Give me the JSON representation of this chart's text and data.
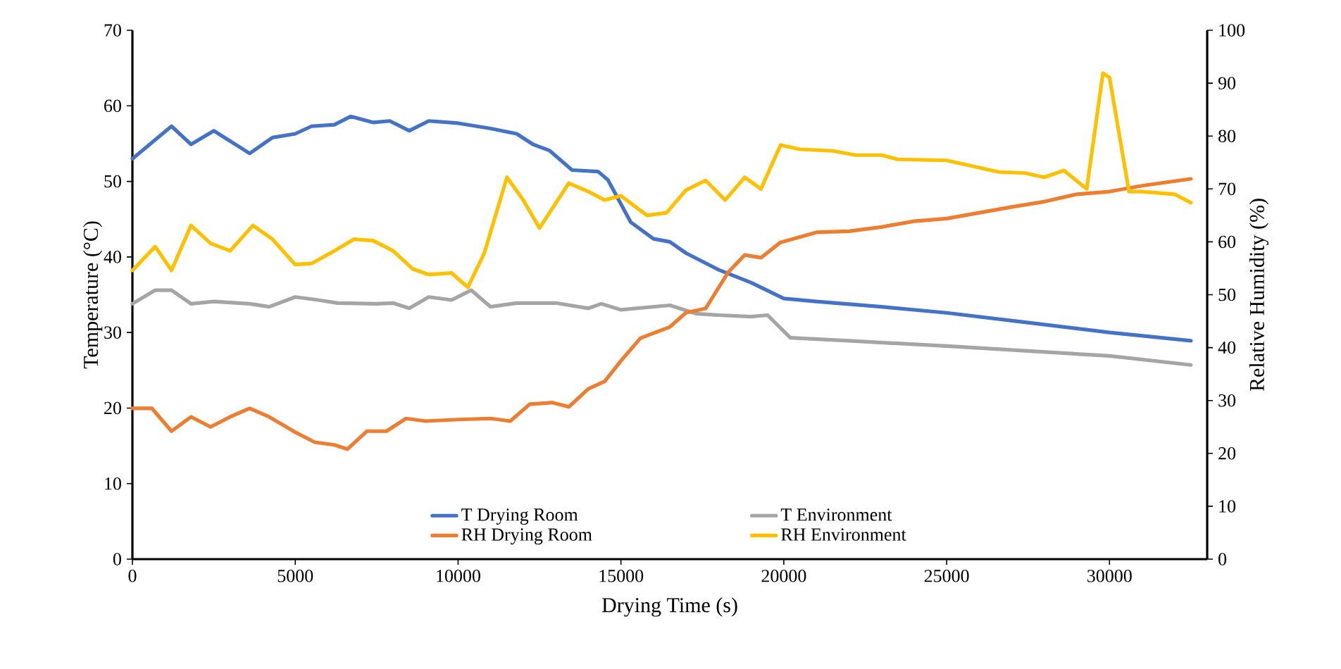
{
  "chart_data": {
    "type": "line",
    "xlabel": "Drying Time (s)",
    "ylabel": "Temperature (°C)",
    "y2label": "Relative Humidity (%)",
    "xlim": [
      0,
      33000
    ],
    "xticks": [
      0,
      5000,
      10000,
      15000,
      20000,
      25000,
      30000
    ],
    "ylim": [
      0,
      70
    ],
    "yticks": [
      0,
      10,
      20,
      30,
      40,
      50,
      60,
      70
    ],
    "y2lim": [
      0,
      100
    ],
    "y2ticks": [
      0,
      10,
      20,
      30,
      40,
      50,
      60,
      70,
      80,
      90,
      100
    ],
    "legend": "bottom",
    "grid": false,
    "marker": "none",
    "line_style": "solid",
    "series": [
      {
        "name": "T Drying Room",
        "color": "#4472c4",
        "x": [
          0,
          1200,
          1800,
          2500,
          3600,
          4300,
          5000,
          5500,
          6200,
          6700,
          7400,
          7900,
          8500,
          9100,
          10000,
          11000,
          11800,
          12300,
          12800,
          13500,
          14300,
          14600,
          15300,
          16000,
          16500,
          17000,
          18000,
          19000,
          20000,
          21000,
          23000,
          25000,
          27500,
          30000,
          32500
        ],
        "values": [
          53,
          57.3,
          54.9,
          56.7,
          53.7,
          55.8,
          56.3,
          57.3,
          57.5,
          58.6,
          57.8,
          58,
          56.7,
          58,
          57.7,
          57,
          56.3,
          54.9,
          54.1,
          51.5,
          51.3,
          50.2,
          44.6,
          42.4,
          42,
          40.5,
          38.3,
          36.6,
          34.5,
          34.1,
          33.4,
          32.6,
          31.3,
          30,
          28.9
        ]
      },
      {
        "name": "T Environment",
        "color": "#a5a5a5",
        "x": [
          0,
          700,
          1200,
          1800,
          2500,
          3600,
          4200,
          5000,
          5700,
          6300,
          7500,
          8000,
          8500,
          9100,
          9800,
          10400,
          11000,
          11800,
          13000,
          14000,
          14400,
          15000,
          16500,
          17300,
          18000,
          19000,
          19500,
          20200,
          22000,
          25000,
          30000,
          32500
        ],
        "values": [
          33.8,
          35.6,
          35.6,
          33.8,
          34.1,
          33.8,
          33.4,
          34.7,
          34.3,
          33.9,
          33.8,
          33.9,
          33.2,
          34.7,
          34.3,
          35.6,
          33.4,
          33.9,
          33.9,
          33.2,
          33.8,
          33,
          33.6,
          32.5,
          32.3,
          32.1,
          32.3,
          29.3,
          28.9,
          28.2,
          26.9,
          25.7
        ]
      },
      {
        "name": "RH Drying Room",
        "color": "#ed7d31",
        "axis": "y2",
        "x": [
          0,
          600,
          1200,
          1800,
          2400,
          3000,
          3600,
          4200,
          5000,
          5600,
          6200,
          6600,
          7200,
          7800,
          8400,
          9000,
          10000,
          11000,
          11600,
          12200,
          12900,
          13400,
          14000,
          14500,
          15000,
          15600,
          16500,
          17000,
          17600,
          18300,
          18800,
          19300,
          19900,
          21000,
          22000,
          23000,
          24000,
          25000,
          26000,
          27000,
          28000,
          29000,
          30000,
          31000,
          32500
        ],
        "values": [
          28.5,
          28.5,
          24.2,
          26.9,
          25,
          26.9,
          28.5,
          26.9,
          24,
          22.1,
          21.6,
          20.8,
          24.2,
          24.2,
          26.6,
          26.1,
          26.4,
          26.6,
          26.1,
          29.3,
          29.6,
          28.8,
          32.2,
          33.6,
          37.5,
          41.8,
          43.9,
          46.6,
          47.4,
          54.3,
          57.5,
          57,
          59.9,
          61.8,
          62,
          62.8,
          63.9,
          64.4,
          65.5,
          66.6,
          67.6,
          69,
          69.5,
          70.6,
          71.9
        ]
      },
      {
        "name": "RH Environment",
        "color": "#ffc000",
        "axis": "y2",
        "x": [
          0,
          700,
          1200,
          1800,
          2400,
          3000,
          3700,
          4300,
          5000,
          5500,
          6200,
          6800,
          7400,
          8000,
          8600,
          9100,
          9800,
          10300,
          10800,
          11500,
          12000,
          12500,
          13400,
          14000,
          14500,
          15000,
          15800,
          16400,
          17000,
          17600,
          18200,
          18800,
          19300,
          19900,
          20500,
          21500,
          22200,
          23000,
          23500,
          25000,
          26600,
          27400,
          28000,
          28600,
          29300,
          29800,
          30000,
          30600,
          31000,
          32000,
          32500
        ],
        "values": [
          54.6,
          59.1,
          54.6,
          63.1,
          59.7,
          58.3,
          63.1,
          60.5,
          55.7,
          55.9,
          58.3,
          60.5,
          60.2,
          58.3,
          54.9,
          53.8,
          54.1,
          51.4,
          57.8,
          72.2,
          67.9,
          62.6,
          71.1,
          69.5,
          67.9,
          68.7,
          65,
          65.5,
          69.8,
          71.6,
          67.9,
          72.2,
          70,
          78.3,
          77.5,
          77.2,
          76.4,
          76.4,
          75.6,
          75.4,
          73.2,
          73,
          72.2,
          73.5,
          70,
          91.9,
          91.1,
          69.5,
          69.5,
          69,
          67.4
        ]
      }
    ]
  }
}
